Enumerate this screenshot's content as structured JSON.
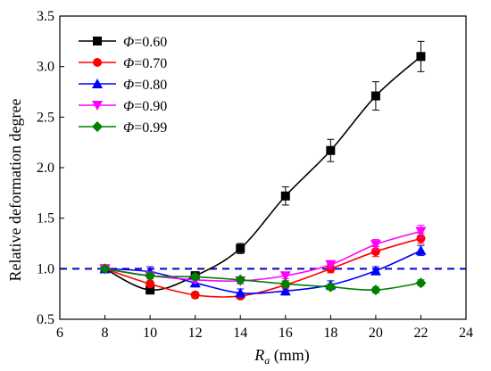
{
  "chart_data": {
    "type": "line",
    "title": "",
    "xlabel": {
      "main": "R",
      "sub": "a",
      "unit": " (mm)"
    },
    "ylabel": "Relative deformation degree",
    "xlim": [
      6,
      24
    ],
    "ylim": [
      0.5,
      3.5
    ],
    "xticks": [
      6,
      8,
      10,
      12,
      14,
      16,
      18,
      20,
      22,
      24
    ],
    "yticks": [
      0.5,
      1.0,
      1.5,
      2.0,
      2.5,
      3.0,
      3.5
    ],
    "xtick_labels": [
      "6",
      "8",
      "10",
      "12",
      "14",
      "16",
      "18",
      "20",
      "22",
      "24"
    ],
    "ytick_labels": [
      "0.5",
      "1.0",
      "1.5",
      "2.0",
      "2.5",
      "3.0",
      "3.5"
    ],
    "reference_line": {
      "y": 1.0,
      "style": "dashed",
      "color": "#0000cc"
    },
    "legend_position": "top-left",
    "x": [
      8,
      10,
      12,
      14,
      16,
      18,
      20,
      22
    ],
    "series": [
      {
        "name": "0.60",
        "symbol": "Φ",
        "marker": "square",
        "color": "#000000",
        "values": [
          1.0,
          0.79,
          0.93,
          1.2,
          1.72,
          2.17,
          2.71,
          3.1
        ],
        "errors": [
          0.0,
          0.04,
          0.04,
          0.05,
          0.09,
          0.11,
          0.14,
          0.15
        ]
      },
      {
        "name": "0.70",
        "symbol": "Φ",
        "marker": "circle",
        "color": "#ff0000",
        "values": [
          1.0,
          0.85,
          0.74,
          0.73,
          0.84,
          1.0,
          1.17,
          1.3
        ],
        "errors": [
          0.0,
          0.03,
          0.03,
          0.03,
          0.04,
          0.04,
          0.05,
          0.05
        ]
      },
      {
        "name": "0.80",
        "symbol": "Φ",
        "marker": "triangle-up",
        "color": "#0000ff",
        "values": [
          1.0,
          0.97,
          0.86,
          0.76,
          0.78,
          0.84,
          0.98,
          1.18
        ],
        "errors": [
          0.0,
          0.05,
          0.04,
          0.04,
          0.04,
          0.04,
          0.04,
          0.05
        ]
      },
      {
        "name": "0.90",
        "symbol": "Φ",
        "marker": "triangle-down",
        "color": "#ff00ff",
        "values": [
          1.0,
          0.93,
          0.89,
          0.88,
          0.93,
          1.04,
          1.24,
          1.37
        ],
        "errors": [
          0.0,
          0.03,
          0.03,
          0.03,
          0.03,
          0.04,
          0.05,
          0.06
        ]
      },
      {
        "name": "0.99",
        "symbol": "Φ",
        "marker": "diamond",
        "color": "#008000",
        "values": [
          1.0,
          0.93,
          0.92,
          0.89,
          0.85,
          0.82,
          0.79,
          0.86
        ],
        "errors": [
          0.0,
          0.03,
          0.03,
          0.03,
          0.03,
          0.03,
          0.03,
          0.03
        ]
      }
    ]
  }
}
